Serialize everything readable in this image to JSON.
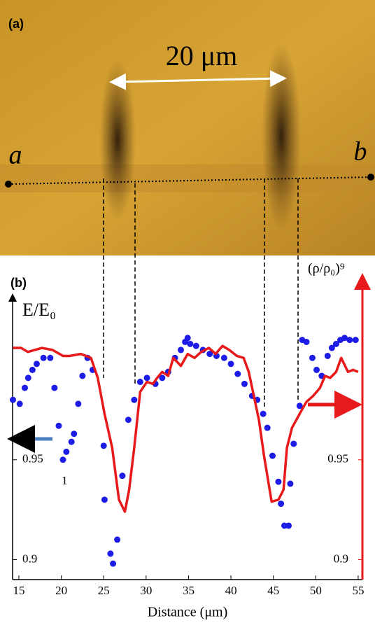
{
  "panel_a": {
    "label": "(a)",
    "scale_bar": "20 μm",
    "point_a": "a",
    "point_b": "b"
  },
  "chart_data": {
    "type": "scatter-line",
    "panel_label": "(b)",
    "y_label": "E/E₀",
    "y2_label": "(ρ/ρ₀)⁹",
    "x_label": "Distance (μm)",
    "annotation": "1",
    "xlim": [
      14.26,
      55.5
    ],
    "xticks": [
      15,
      20,
      25,
      30,
      35,
      40,
      45,
      50,
      55
    ],
    "ylim": [
      0.89,
      1.033
    ],
    "yticks": [
      0.95,
      0.9
    ],
    "y2lim": [
      0.89,
      1.033
    ],
    "y2ticks": [
      0.95,
      0.9
    ],
    "series": [
      {
        "kind": "scatter",
        "color": "#1c1ce6",
        "x": [
          14.3,
          15.1,
          15.7,
          16.1,
          16.6,
          17.1,
          17.9,
          18.7,
          19.2,
          19.7,
          20.2,
          20.6,
          21.2,
          21.5,
          22.0,
          22.5,
          23.1,
          23.7,
          25.0,
          25.1,
          25.8,
          26.1,
          26.6,
          27.2,
          27.9,
          28.6,
          29.3,
          30.1,
          31.1,
          31.9,
          32.6,
          33.4,
          34.1,
          34.6,
          34.9,
          35.2,
          35.9,
          36.7,
          37.5,
          38.3,
          39.2,
          40.0,
          40.8,
          41.6,
          42.5,
          43.1,
          43.8,
          44.3,
          44.9,
          45.6,
          45.9,
          46.3,
          46.8,
          47.0,
          47.4,
          48.1,
          48.4,
          48.9,
          49.6,
          50.1,
          50.7,
          51.4,
          51.9,
          52.4,
          52.9,
          53.4,
          54.0,
          54.7
        ],
        "values": [
          0.98,
          0.978,
          0.986,
          0.991,
          0.995,
          0.998,
          1.001,
          1.001,
          0.986,
          0.967,
          0.95,
          0.954,
          0.959,
          0.963,
          0.978,
          0.992,
          1.001,
          0.995,
          0.957,
          0.93,
          0.903,
          0.898,
          0.91,
          0.942,
          0.97,
          0.98,
          0.989,
          0.991,
          0.988,
          0.991,
          0.994,
          1.001,
          1.005,
          1.009,
          1.011,
          1.008,
          1.007,
          1.005,
          1.003,
          1.002,
          1.001,
          0.998,
          0.993,
          0.988,
          0.982,
          0.98,
          0.973,
          0.966,
          0.952,
          0.939,
          0.928,
          0.917,
          0.917,
          0.938,
          0.958,
          0.977,
          1.01,
          1.009,
          1.001,
          0.995,
          0.992,
          1.002,
          1.006,
          1.008,
          1.01,
          1.011,
          1.01,
          1.01
        ]
      },
      {
        "kind": "line",
        "axis": "y2",
        "color": "#e8191a",
        "x": [
          14.3,
          15.25,
          16.07,
          17.72,
          18.96,
          20.2,
          21.0,
          22.3,
          23.5,
          24.3,
          25.1,
          26.0,
          26.8,
          27.5,
          28.0,
          28.6,
          29.3,
          30.1,
          30.8,
          31.3,
          31.9,
          32.6,
          33.2,
          34.1,
          34.9,
          35.7,
          36.5,
          37.4,
          38.2,
          39.0,
          39.8,
          40.7,
          41.5,
          42.1,
          42.6,
          43.3,
          43.9,
          44.8,
          45.6,
          46.2,
          46.6,
          47.2,
          48.1,
          48.9,
          49.7,
          50.5,
          51.1,
          51.7,
          52.4,
          53.0,
          53.8,
          54.4,
          55.0
        ],
        "values": [
          1.006,
          1.006,
          1.004,
          1.006,
          1.005,
          1.002,
          1.002,
          1.003,
          1.001,
          0.991,
          0.973,
          0.956,
          0.93,
          0.924,
          0.935,
          0.956,
          0.984,
          0.989,
          0.988,
          0.991,
          0.994,
          0.992,
          1.001,
          0.997,
          1.003,
          1.001,
          1.004,
          1.006,
          1.003,
          1.007,
          1.005,
          1.002,
          1.001,
          0.994,
          0.984,
          0.97,
          0.952,
          0.929,
          0.93,
          0.935,
          0.956,
          0.966,
          0.973,
          0.979,
          0.982,
          0.986,
          0.992,
          0.991,
          0.994,
          1.001,
          0.994,
          0.995,
          0.994
        ]
      }
    ]
  }
}
